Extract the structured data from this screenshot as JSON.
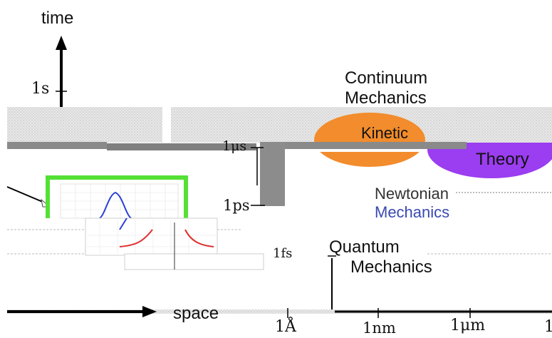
{
  "axes": {
    "vertical_label": "time",
    "horizontal_label": "space"
  },
  "time_ticks": {
    "s": "1s",
    "us": "1μs",
    "ps": "1ps",
    "fs": "1fs"
  },
  "space_ticks": {
    "angstrom": "1Å",
    "nm": "1nm",
    "um": "1μm",
    "m": "1"
  },
  "regions": {
    "continuum": [
      "Continuum",
      "Mechanics"
    ],
    "newtonian": [
      "Newtonian",
      "Mechanics"
    ],
    "quantum": [
      "Quantum",
      "Mechanics"
    ],
    "kinetic": "Kinetic",
    "theory": "Theory"
  },
  "colors": {
    "kinetic_fill": "#f28c2c",
    "theory_fill": "#9b3df0",
    "inset_border": "#55e035",
    "gaussian_curve": "#2a3fd8",
    "red_curve": "#e03030"
  }
}
